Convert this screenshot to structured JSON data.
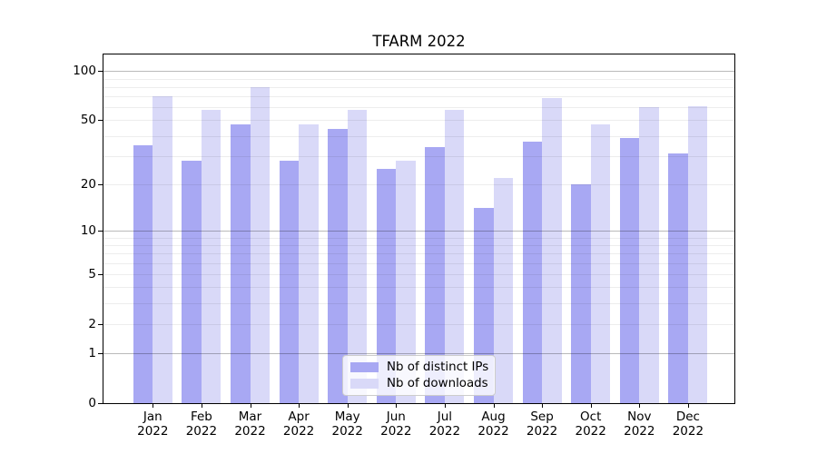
{
  "chart_data": {
    "type": "bar",
    "title": "TFARM 2022",
    "categories": [
      {
        "month": "Jan",
        "year": "2022"
      },
      {
        "month": "Feb",
        "year": "2022"
      },
      {
        "month": "Mar",
        "year": "2022"
      },
      {
        "month": "Apr",
        "year": "2022"
      },
      {
        "month": "May",
        "year": "2022"
      },
      {
        "month": "Jun",
        "year": "2022"
      },
      {
        "month": "Jul",
        "year": "2022"
      },
      {
        "month": "Aug",
        "year": "2022"
      },
      {
        "month": "Sep",
        "year": "2022"
      },
      {
        "month": "Oct",
        "year": "2022"
      },
      {
        "month": "Nov",
        "year": "2022"
      },
      {
        "month": "Dec",
        "year": "2022"
      }
    ],
    "series": [
      {
        "name": "Nb of distinct IPs",
        "color": "#a8a8f3",
        "values": [
          35,
          28,
          47,
          28,
          44,
          25,
          34,
          14,
          37,
          20,
          39,
          31
        ]
      },
      {
        "name": "Nb of downloads",
        "color": "#d9d9f8",
        "values": [
          70,
          58,
          80,
          47,
          58,
          28,
          58,
          22,
          68,
          47,
          60,
          61
        ]
      }
    ],
    "yscale": "log1p",
    "yticks": [
      100,
      50,
      20,
      10,
      5,
      2,
      1,
      0
    ],
    "ylim": [
      0,
      126
    ],
    "xlabel": "",
    "ylabel": "",
    "grid": true,
    "legend_position": "lower-center",
    "colors": {
      "background": "#ffffff",
      "spine": "#000000",
      "grid_major": "#bababa",
      "grid_minor": "#ededed"
    }
  }
}
